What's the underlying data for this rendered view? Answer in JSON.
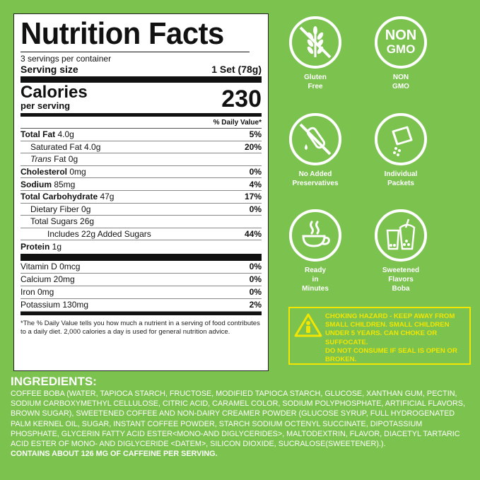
{
  "nutrition": {
    "title": "Nutrition Facts",
    "servings_per_container": "3 servings per container",
    "serving_size_label": "Serving size",
    "serving_size_value": "1 Set (78g)",
    "calories_label": "Calories",
    "per_serving_label": "per serving",
    "calories_value": "230",
    "daily_value_header": "% Daily Value*",
    "rows": [
      {
        "bold": "Total Fat",
        "amount": " 4.0g",
        "pct": "5%"
      },
      {
        "bold": "",
        "amount": "Saturated Fat 4.0g",
        "pct": "20%"
      },
      {
        "italic": "Trans",
        "amount": " Fat 0g",
        "pct": ""
      },
      {
        "bold": "Cholesterol",
        "amount": " 0mg",
        "pct": "0%"
      },
      {
        "bold": "Sodium",
        "amount": " 85mg",
        "pct": "4%"
      },
      {
        "bold": "Total Carbohydrate",
        "amount": " 47g",
        "pct": "17%"
      },
      {
        "bold": "",
        "amount": "Dietary Fiber  0g",
        "pct": "0%"
      },
      {
        "bold": "",
        "amount": "Total Sugars  26g",
        "pct": ""
      },
      {
        "bold": "",
        "amount": "Includes 22g Added Sugars",
        "pct": "44%"
      },
      {
        "bold": "Protein",
        "amount": " 1g",
        "pct": ""
      }
    ],
    "vitamins": [
      {
        "name": "Vitamin D 0mcg",
        "pct": "0%"
      },
      {
        "name": "Calcium 20mg",
        "pct": "0%"
      },
      {
        "name": "Iron  0mg",
        "pct": "0%"
      },
      {
        "name": "Potassium 130mg",
        "pct": "2%"
      }
    ],
    "footnote": "*The % Daily Value tells you how much a nutrient in a serving of food contributes to a daily diet. 2,000 calories a day is used for general nutrition advice."
  },
  "icons": [
    {
      "name": "wheat-crossed-icon",
      "label": "Gluten\nFree"
    },
    {
      "name": "non-gmo-icon",
      "label": "NON\nGMO",
      "badge_line1": "NON",
      "badge_line2": "GMO"
    },
    {
      "name": "test-tube-crossed-icon",
      "label": "No Added\nPreservatives"
    },
    {
      "name": "packet-icon",
      "label": "Individual\nPackets"
    },
    {
      "name": "coffee-cup-icon",
      "label": "Ready\nin\nMinutes"
    },
    {
      "name": "boba-drink-icon",
      "label": "Sweetened\nFlavors\nBoba"
    }
  ],
  "warning": {
    "line1": "CHOKING HAZARD - KEEP AWAY FROM SMALL CHILDREN. SMALL CHILDREN UNDER 5 YEARS. CAN CHOKE OR SUFFOCATE.",
    "line2": "DO NOT CONSUME IF SEAL IS OPEN OR BROKEN."
  },
  "ingredients": {
    "title": "INGREDIENTS:",
    "body": "COFFEE BOBA (WATER, TAPIOCA STARCH, FRUCTOSE, MODIFIED TAPIOCA STARCH, GLUCOSE, XANTHAN GUM, PECTIN, SODIUM CARBOXYMETHYL CELLULOSE, CITRIC ACID, CARAMEL COLOR, SODIUM POLYPHOSPHATE, ARTIFICIAL FLAVORS, BROWN SUGAR), SWEETENED COFFEE AND NON-DAIRY CREAMER POWDER (GLUCOSE SYRUP, FULL HYDROGENATED PALM KERNEL OIL, SUGAR, INSTANT COFFEE POWDER, STARCH SODIUM OCTENYL SUCCINATE, DIPOTASSIUM PHOSPHATE, GLYCERIN FATTY ACID ESTER<MONO-AND DIGLYCERIDES>, MALTODEXTRIN, FLAVOR, DIACETYL TARTARIC ACID ESTER OF MONO- AND DIGLYCERIDE <DATEM>, SILICON DIOXIDE, SUCRALOSE(SWEETENER).).",
    "caffeine": "CONTAINS ABOUT 126 MG OF CAFFEINE PER SERVING."
  },
  "colors": {
    "background": "#7cc24f",
    "warning": "#f2e600",
    "icon": "#ffffff"
  }
}
